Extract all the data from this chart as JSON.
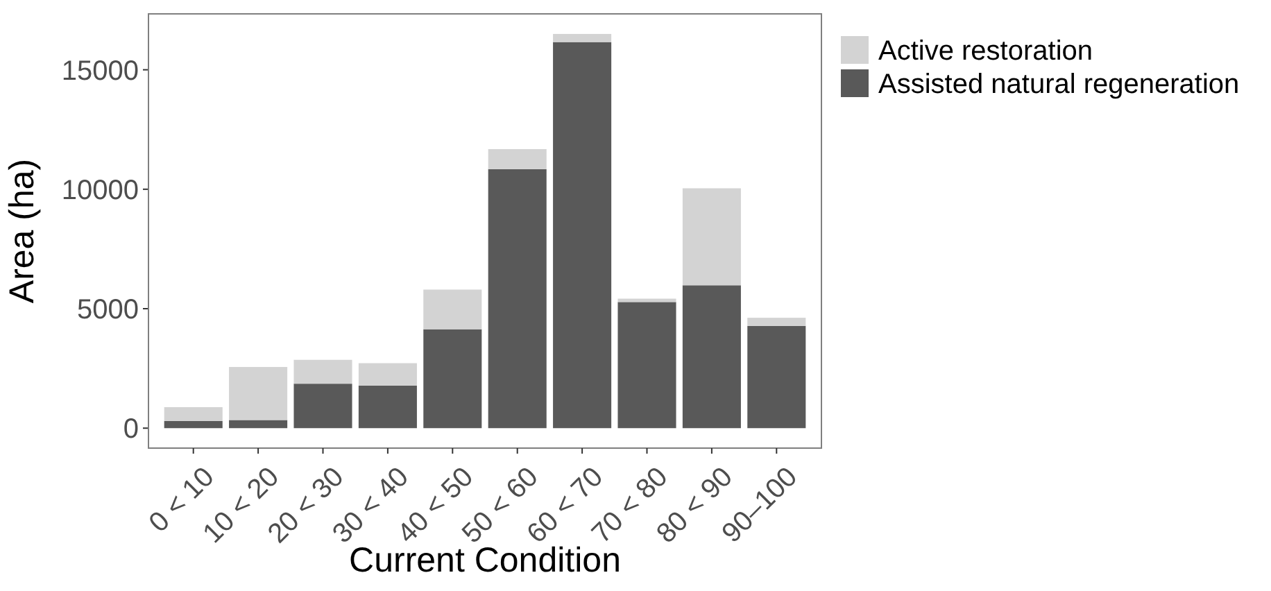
{
  "chart_data": {
    "type": "bar",
    "stacked": true,
    "xlabel": "Current Condition",
    "ylabel": "Area (ha)",
    "categories": [
      "0 < 10",
      "10 < 20",
      "20 < 30",
      "30 < 40",
      "40 < 50",
      "50 < 60",
      "60 < 70",
      "70 < 80",
      "80 < 90",
      "90–100"
    ],
    "series": [
      {
        "name": "Assisted natural regeneration",
        "color": "#595959",
        "values": [
          300,
          340,
          1860,
          1780,
          4140,
          10840,
          16160,
          5280,
          5980,
          4280
        ]
      },
      {
        "name": "Active restoration",
        "color": "#d3d3d3",
        "values": [
          580,
          2220,
          1000,
          940,
          1660,
          840,
          340,
          140,
          4060,
          340
        ]
      }
    ],
    "ylim": [
      -835,
      17340
    ],
    "yticks": [
      0,
      5000,
      10000,
      15000
    ],
    "grid": false,
    "legend": "right"
  }
}
